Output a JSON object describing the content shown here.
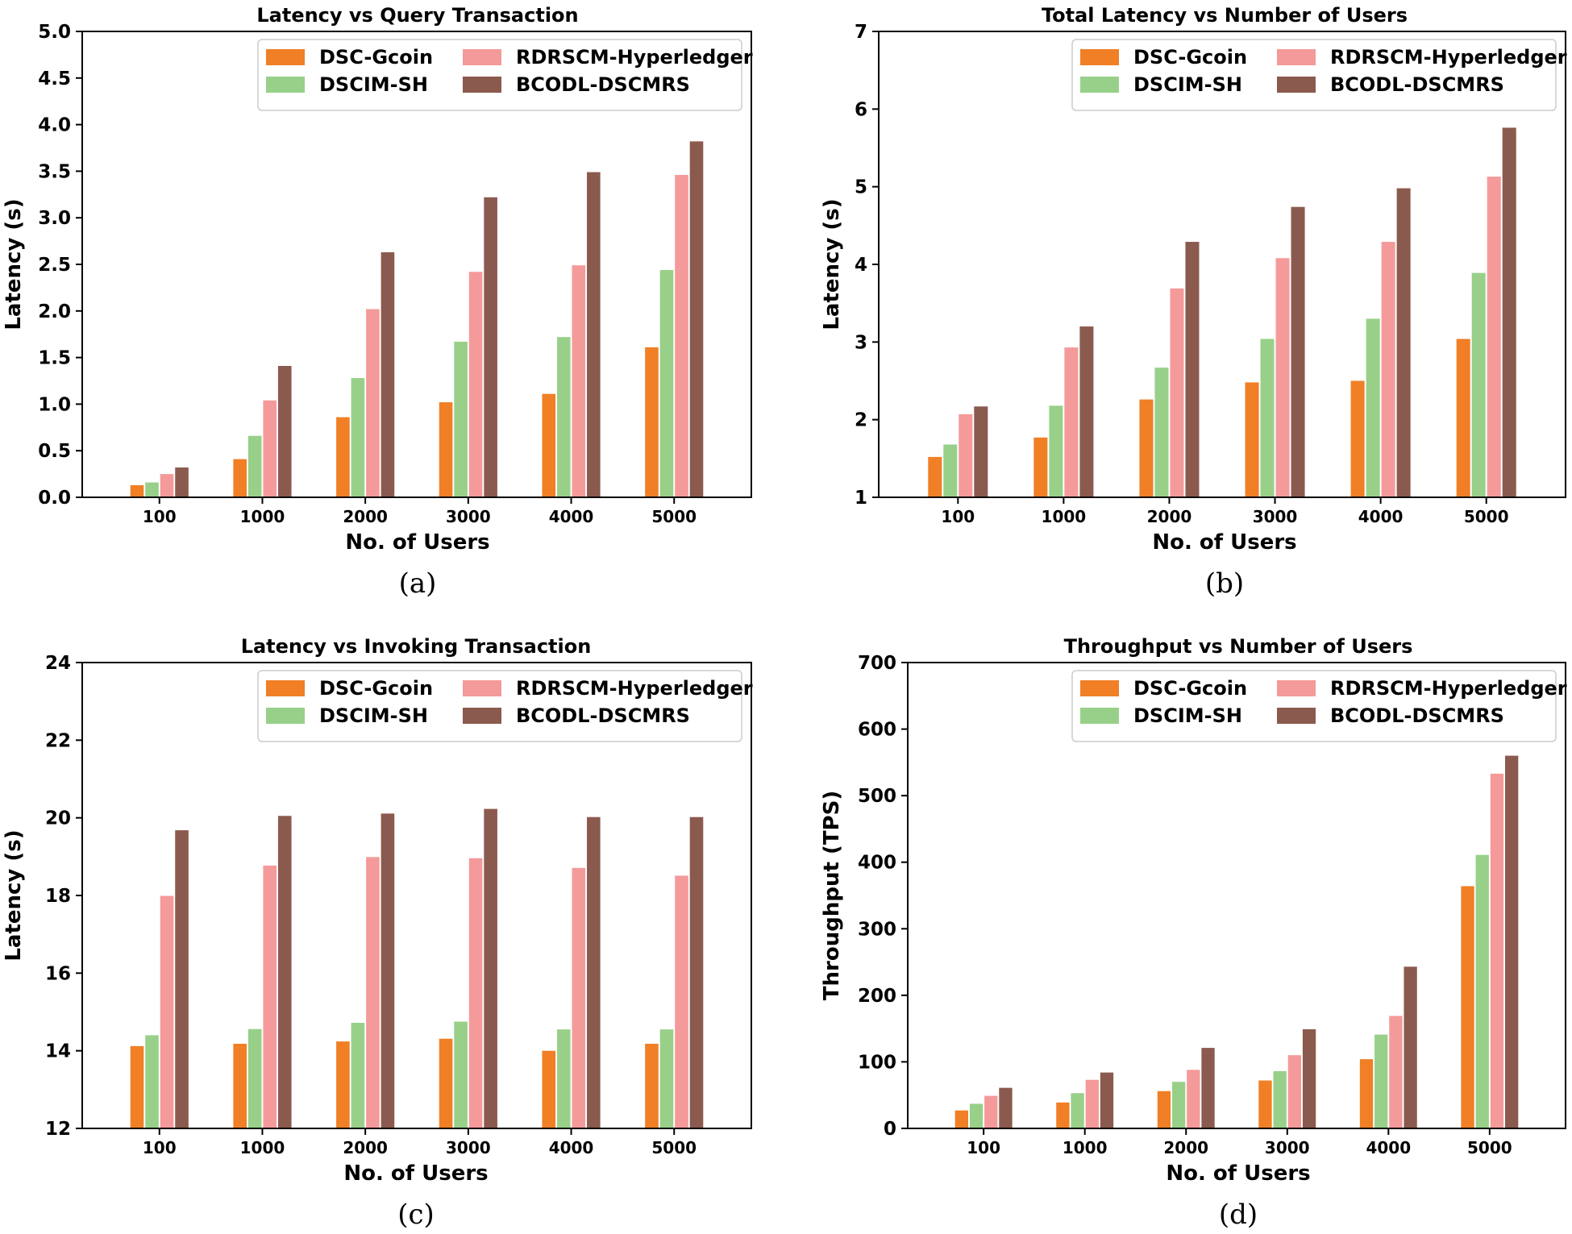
{
  "chart_data": [
    {
      "type": "bar",
      "title": "Latency vs Query Transaction",
      "xlabel": "No. of Users",
      "ylabel": "Latency (s)",
      "caption": "(a)",
      "categories": [
        "100",
        "1000",
        "2000",
        "3000",
        "4000",
        "5000"
      ],
      "ylim": [
        0,
        5
      ],
      "yticks": [
        "0.0",
        "0.5",
        "1.0",
        "1.5",
        "2.0",
        "2.5",
        "3.0",
        "3.5",
        "4.0",
        "4.5",
        "5.0"
      ],
      "legend_position": "top-right",
      "series": [
        {
          "name": "DSC-Gcoin",
          "values": [
            0.13,
            0.41,
            0.86,
            1.02,
            1.11,
            1.61
          ]
        },
        {
          "name": "DSCIM-SH",
          "values": [
            0.16,
            0.66,
            1.28,
            1.67,
            1.72,
            2.44
          ]
        },
        {
          "name": "RDRSCM-Hyperledger",
          "values": [
            0.25,
            1.04,
            2.02,
            2.42,
            2.49,
            3.46
          ]
        },
        {
          "name": "BCODL-DSCMRS",
          "values": [
            0.32,
            1.41,
            2.63,
            3.22,
            3.49,
            3.82
          ]
        }
      ]
    },
    {
      "type": "bar",
      "title": "Total Latency vs Number of Users",
      "xlabel": "No. of Users",
      "ylabel": "Latency (s)",
      "caption": "(b)",
      "categories": [
        "100",
        "1000",
        "2000",
        "3000",
        "4000",
        "5000"
      ],
      "ylim": [
        1,
        7
      ],
      "yticks": [
        "1",
        "2",
        "3",
        "4",
        "5",
        "6",
        "7"
      ],
      "legend_position": "top-right",
      "series": [
        {
          "name": "DSC-Gcoin",
          "values": [
            1.52,
            1.77,
            2.26,
            2.48,
            2.5,
            3.04
          ]
        },
        {
          "name": "DSCIM-SH",
          "values": [
            1.68,
            2.18,
            2.67,
            3.04,
            3.3,
            3.89
          ]
        },
        {
          "name": "RDRSCM-Hyperledger",
          "values": [
            2.07,
            2.93,
            3.69,
            4.08,
            4.29,
            5.13
          ]
        },
        {
          "name": "BCODL-DSCMRS",
          "values": [
            2.17,
            3.2,
            4.29,
            4.74,
            4.98,
            5.76
          ]
        }
      ]
    },
    {
      "type": "bar",
      "title": "Latency vs Invoking Transaction",
      "xlabel": "No. of Users",
      "ylabel": "Latency (s)",
      "caption": "(c)",
      "categories": [
        "100",
        "1000",
        "2000",
        "3000",
        "4000",
        "5000"
      ],
      "ylim": [
        12,
        24
      ],
      "yticks": [
        "12",
        "14",
        "16",
        "18",
        "20",
        "22",
        "24"
      ],
      "legend_position": "top-right",
      "series": [
        {
          "name": "DSC-Gcoin",
          "values": [
            14.12,
            14.18,
            14.24,
            14.31,
            14.0,
            14.18
          ]
        },
        {
          "name": "DSCIM-SH",
          "values": [
            14.4,
            14.56,
            14.72,
            14.75,
            14.55,
            14.55
          ]
        },
        {
          "name": "RDRSCM-Hyperledger",
          "values": [
            17.99,
            18.77,
            18.99,
            18.96,
            18.71,
            18.51
          ]
        },
        {
          "name": "BCODL-DSCMRS",
          "values": [
            19.68,
            20.05,
            20.11,
            20.23,
            20.02,
            20.02
          ]
        }
      ]
    },
    {
      "type": "bar",
      "title": "Throughput vs Number of Users",
      "xlabel": "No. of Users",
      "ylabel": "Throughput (TPS)",
      "caption": "(d)",
      "categories": [
        "100",
        "1000",
        "2000",
        "3000",
        "4000",
        "5000"
      ],
      "ylim": [
        0,
        700
      ],
      "yticks": [
        "0",
        "100",
        "200",
        "300",
        "400",
        "500",
        "600",
        "700"
      ],
      "legend_position": "top-right",
      "series": [
        {
          "name": "DSC-Gcoin",
          "values": [
            27,
            39,
            56,
            72,
            104,
            364
          ]
        },
        {
          "name": "DSCIM-SH",
          "values": [
            37,
            53,
            70,
            86,
            141,
            411
          ]
        },
        {
          "name": "RDRSCM-Hyperledger",
          "values": [
            49,
            73,
            88,
            110,
            169,
            533
          ]
        },
        {
          "name": "BCODL-DSCMRS",
          "values": [
            61,
            84,
            121,
            149,
            243,
            560
          ]
        }
      ]
    }
  ],
  "series_colors": [
    "#f07f26",
    "#98d089",
    "#f49a9a",
    "#8b5a4e"
  ]
}
